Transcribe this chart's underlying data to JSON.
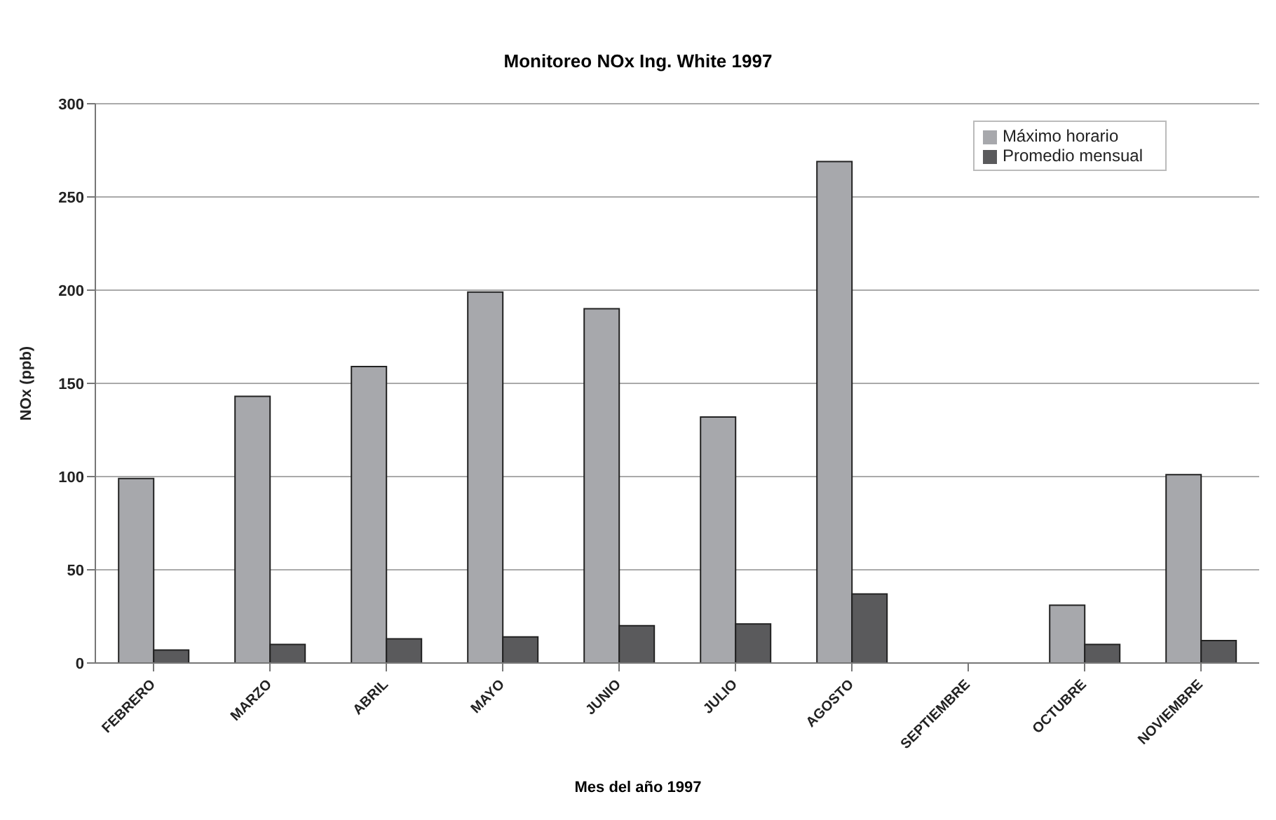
{
  "chart_data": {
    "type": "bar",
    "title": "Monitoreo NOx Ing. White 1997",
    "xlabel": "Mes del año 1997",
    "ylabel": "NOx (ppb)",
    "categories": [
      "FEBRERO",
      "MARZO",
      "ABRIL",
      "MAYO",
      "JUNIO",
      "JULIO",
      "AGOSTO",
      "SEPTIEMBRE",
      "OCTUBRE",
      "NOVIEMBRE"
    ],
    "series": [
      {
        "name": "Máximo horario",
        "color": "#a7a8ac",
        "values": [
          99,
          143,
          159,
          199,
          190,
          132,
          269,
          null,
          31,
          101
        ]
      },
      {
        "name": "Promedio mensual",
        "color": "#5a5a5c",
        "values": [
          7,
          10,
          13,
          14,
          20,
          21,
          37,
          null,
          10,
          12
        ]
      }
    ],
    "ylim": [
      0,
      300
    ],
    "yticks": [
      0,
      50,
      100,
      150,
      200,
      250,
      300
    ],
    "grid": "y",
    "legend": "top right"
  }
}
